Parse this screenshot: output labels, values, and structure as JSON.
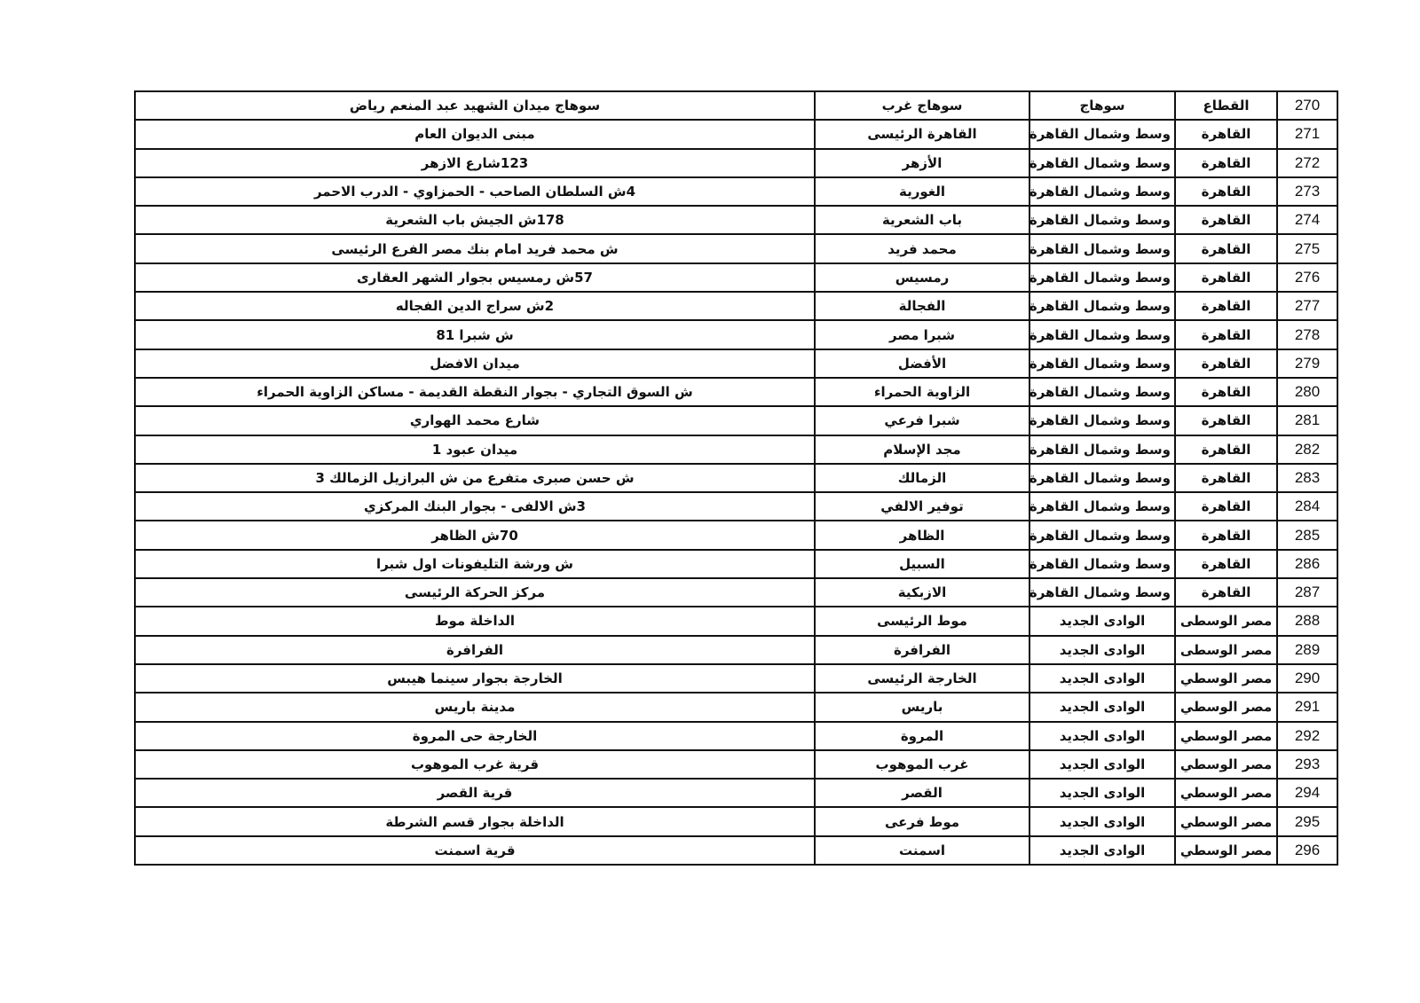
{
  "table": {
    "rows": [
      [
        "270",
        "القطاع",
        "سوهاج",
        "سوهاج غرب",
        "سوهاج ميدان الشهيد عبد المنعم رياض"
      ],
      [
        "271",
        "القاهرة",
        "وسط وشمال القاهرة",
        "القاهرة الرئيسى",
        "مبنى الديوان العام"
      ],
      [
        "272",
        "القاهرة",
        "وسط وشمال القاهرة",
        "الأزهر",
        "123شارع الازهر"
      ],
      [
        "273",
        "القاهرة",
        "وسط وشمال القاهرة",
        "الغورية",
        "4ش السلطان الصاحب - الحمزاوي - الدرب الاحمر"
      ],
      [
        "274",
        "القاهرة",
        "وسط وشمال القاهرة",
        "باب الشعرية",
        "178ش الجيش باب الشعرية"
      ],
      [
        "275",
        "القاهرة",
        "وسط وشمال القاهرة",
        "محمد فريد",
        "ش محمد فريد امام بنك مصر الفرع الرئيسى"
      ],
      [
        "276",
        "القاهرة",
        "وسط وشمال القاهرة",
        "رمسيس",
        "57ش رمسيس بجوار الشهر العقارى"
      ],
      [
        "277",
        "القاهرة",
        "وسط وشمال القاهرة",
        "الفجالة",
        "2ش سراج الدين الفجاله"
      ],
      [
        "278",
        "القاهرة",
        "وسط وشمال القاهرة",
        "شبرا مصر",
        "ش شبرا 81"
      ],
      [
        "279",
        "القاهرة",
        "وسط وشمال القاهرة",
        "الأفضل",
        "ميدان الافضل"
      ],
      [
        "280",
        "القاهرة",
        "وسط وشمال القاهرة",
        "الزاوية الحمراء",
        "ش السوق التجاري - بجوار النقطة القديمة - مساكن الزاوية الحمراء"
      ],
      [
        "281",
        "القاهرة",
        "وسط وشمال القاهرة",
        "شبرا فرعي",
        "شارع محمد الهواري"
      ],
      [
        "282",
        "القاهرة",
        "وسط وشمال القاهرة",
        "مجد الإسلام",
        "ميدان عبود 1"
      ],
      [
        "283",
        "القاهرة",
        "وسط وشمال القاهرة",
        "الزمالك",
        "ش حسن صبرى متفرع من ش البرازيل الزمالك 3"
      ],
      [
        "284",
        "القاهرة",
        "وسط وشمال القاهرة",
        "توفير الالفي",
        "3ش الالفى - بجوار البنك المركزي"
      ],
      [
        "285",
        "القاهرة",
        "وسط وشمال القاهرة",
        "الظاهر",
        "70ش الظاهر"
      ],
      [
        "286",
        "القاهرة",
        "وسط وشمال القاهرة",
        "السبيل",
        "ش ورشة التليفونات اول شبرا"
      ],
      [
        "287",
        "القاهرة",
        "وسط وشمال القاهرة",
        "الازبكية",
        "مركز الحركة الرئيسى"
      ],
      [
        "288",
        "مصر الوسطى",
        "الوادى الجديد",
        "موط الرئيسى",
        "الداخلة موط"
      ],
      [
        "289",
        "مصر الوسطى",
        "الوادى الجديد",
        "الفرافرة",
        "الفرافرة"
      ],
      [
        "290",
        "مصر الوسطي",
        "الوادى الجديد",
        "الخارجة الرئيسى",
        "الخارجة بجوار سينما هيبس"
      ],
      [
        "291",
        "مصر الوسطي",
        "الوادى الجديد",
        "باريس",
        "مدينة باريس"
      ],
      [
        "292",
        "مصر الوسطي",
        "الوادى الجديد",
        "المروة",
        "الخارجة حى المروة"
      ],
      [
        "293",
        "مصر الوسطي",
        "الوادى الجديد",
        "غرب الموهوب",
        "قرية غرب الموهوب"
      ],
      [
        "294",
        "مصر الوسطي",
        "الوادى الجديد",
        "القصر",
        "قرية القصر"
      ],
      [
        "295",
        "مصر الوسطي",
        "الوادى الجديد",
        "موط فرعى",
        "الداخلة بجوار قسم الشرطة"
      ],
      [
        "296",
        "مصر الوسطي",
        "الوادى الجديد",
        "اسمنت",
        "قرية اسمنت"
      ]
    ]
  }
}
